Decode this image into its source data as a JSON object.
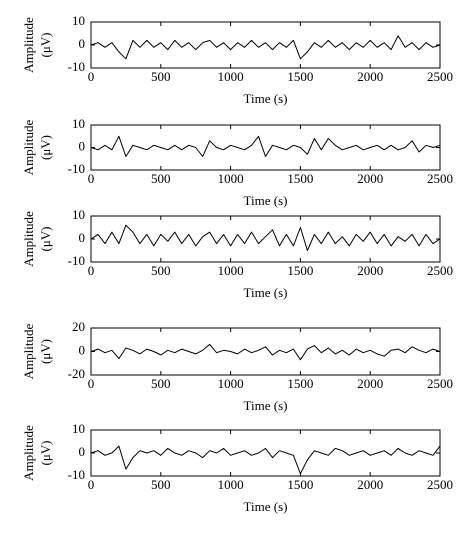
{
  "chart_data": [
    {
      "type": "line",
      "xlabel": "Time (s)",
      "ylabel": "Amplitude",
      "yunit": "(μV)",
      "color": "#000000",
      "x": [
        0,
        50,
        100,
        150,
        200,
        250,
        300,
        350,
        400,
        450,
        500,
        550,
        600,
        650,
        700,
        750,
        800,
        850,
        900,
        950,
        1000,
        1050,
        1100,
        1150,
        1200,
        1250,
        1300,
        1350,
        1400,
        1450,
        1500,
        1550,
        1600,
        1650,
        1700,
        1750,
        1800,
        1850,
        1900,
        1950,
        2000,
        2050,
        2100,
        2150,
        2200,
        2250,
        2300,
        2350,
        2400,
        2450,
        2500
      ],
      "values": [
        0,
        1,
        -1,
        1,
        -3,
        -6,
        2,
        -1,
        2,
        -1,
        1,
        -2,
        2,
        -1,
        1,
        -2,
        1,
        2,
        -1,
        1,
        -2,
        1,
        -1,
        2,
        -1,
        1,
        -2,
        1,
        -1,
        2,
        -6,
        -3,
        1,
        -1,
        2,
        -1,
        1,
        -2,
        1,
        -1,
        2,
        -1,
        1,
        -2,
        4,
        -1,
        1,
        -2,
        1,
        -1,
        0
      ],
      "xlim": [
        0,
        2500
      ],
      "xticks": [
        0,
        500,
        1000,
        1500,
        2000,
        2500
      ],
      "ylim": [
        -10,
        10
      ],
      "yticks": [
        -10,
        0,
        10
      ]
    },
    {
      "type": "line",
      "xlabel": "Time (s)",
      "ylabel": "Amplitude",
      "yunit": "(μV)",
      "color": "#000000",
      "x": [
        0,
        50,
        100,
        150,
        200,
        250,
        300,
        350,
        400,
        450,
        500,
        550,
        600,
        650,
        700,
        750,
        800,
        850,
        900,
        950,
        1000,
        1050,
        1100,
        1150,
        1200,
        1250,
        1300,
        1350,
        1400,
        1450,
        1500,
        1550,
        1600,
        1650,
        1700,
        1750,
        1800,
        1850,
        1900,
        1950,
        2000,
        2050,
        2100,
        2150,
        2200,
        2250,
        2300,
        2350,
        2400,
        2450,
        2500
      ],
      "values": [
        0,
        -1,
        1,
        -1,
        5,
        -4,
        1,
        0,
        -1,
        1,
        0,
        -1,
        1,
        -1,
        1,
        0,
        -4,
        3,
        0,
        -1,
        1,
        0,
        -1,
        1,
        5,
        -4,
        1,
        0,
        -1,
        1,
        0,
        -3,
        4,
        -1,
        4,
        1,
        -1,
        0,
        1,
        -1,
        0,
        1,
        -1,
        1,
        -1,
        0,
        3,
        -2,
        1,
        0,
        1
      ],
      "xlim": [
        0,
        2500
      ],
      "xticks": [
        0,
        500,
        1000,
        1500,
        2000,
        2500
      ],
      "ylim": [
        -10,
        10
      ],
      "yticks": [
        -10,
        0,
        10
      ]
    },
    {
      "type": "line",
      "xlabel": "Time (s)",
      "ylabel": "Amplitude",
      "yunit": "(μV)",
      "color": "#000000",
      "x": [
        0,
        50,
        100,
        150,
        200,
        250,
        300,
        350,
        400,
        450,
        500,
        550,
        600,
        650,
        700,
        750,
        800,
        850,
        900,
        950,
        1000,
        1050,
        1100,
        1150,
        1200,
        1250,
        1300,
        1350,
        1400,
        1450,
        1500,
        1550,
        1600,
        1650,
        1700,
        1750,
        1800,
        1850,
        1900,
        1950,
        2000,
        2050,
        2100,
        2150,
        2200,
        2250,
        2300,
        2350,
        2400,
        2450,
        2500
      ],
      "values": [
        0,
        2,
        -2,
        3,
        -2,
        6,
        3,
        -2,
        2,
        -3,
        2,
        -1,
        3,
        -2,
        2,
        -3,
        1,
        3,
        -2,
        2,
        -3,
        2,
        -2,
        3,
        -2,
        1,
        4,
        -3,
        2,
        -3,
        5,
        -5,
        2,
        -2,
        3,
        -2,
        1,
        -3,
        2,
        -1,
        3,
        -2,
        2,
        -3,
        1,
        -1,
        2,
        -3,
        2,
        -2,
        0
      ],
      "xlim": [
        0,
        2500
      ],
      "xticks": [
        0,
        500,
        1000,
        1500,
        2000,
        2500
      ],
      "ylim": [
        -10,
        10
      ],
      "yticks": [
        -10,
        0,
        10
      ]
    },
    {
      "type": "line",
      "xlabel": "Time (s)",
      "ylabel": "Amplitude",
      "yunit": "(μV)",
      "color": "#000000",
      "x": [
        0,
        50,
        100,
        150,
        200,
        250,
        300,
        350,
        400,
        450,
        500,
        550,
        600,
        650,
        700,
        750,
        800,
        850,
        900,
        950,
        1000,
        1050,
        1100,
        1150,
        1200,
        1250,
        1300,
        1350,
        1400,
        1450,
        1500,
        1550,
        1600,
        1650,
        1700,
        1750,
        1800,
        1850,
        1900,
        1950,
        2000,
        2050,
        2100,
        2150,
        2200,
        2250,
        2300,
        2350,
        2400,
        2450,
        2500
      ],
      "values": [
        0,
        2,
        -1,
        1,
        -6,
        3,
        1,
        -2,
        2,
        0,
        -3,
        1,
        -1,
        2,
        0,
        -2,
        1,
        6,
        -1,
        1,
        0,
        -2,
        2,
        -1,
        1,
        4,
        -3,
        1,
        -1,
        2,
        -7,
        2,
        5,
        -1,
        3,
        -2,
        1,
        -3,
        2,
        -1,
        1,
        -2,
        -4,
        1,
        2,
        -1,
        4,
        1,
        -1,
        2,
        0
      ],
      "xlim": [
        0,
        2500
      ],
      "xticks": [
        0,
        500,
        1000,
        1500,
        2000,
        2500
      ],
      "ylim": [
        -20,
        20
      ],
      "yticks": [
        -20,
        0,
        20
      ]
    },
    {
      "type": "line",
      "xlabel": "Time (s)",
      "ylabel": "Amplitude",
      "yunit": "(μV)",
      "color": "#000000",
      "x": [
        0,
        50,
        100,
        150,
        200,
        250,
        300,
        350,
        400,
        450,
        500,
        550,
        600,
        650,
        700,
        750,
        800,
        850,
        900,
        950,
        1000,
        1050,
        1100,
        1150,
        1200,
        1250,
        1300,
        1350,
        1400,
        1450,
        1500,
        1550,
        1600,
        1650,
        1700,
        1750,
        1800,
        1850,
        1900,
        1950,
        2000,
        2050,
        2100,
        2150,
        2200,
        2250,
        2300,
        2350,
        2400,
        2450,
        2500
      ],
      "values": [
        0,
        1,
        -1,
        0,
        3,
        -7,
        -2,
        1,
        0,
        1,
        -1,
        2,
        0,
        -1,
        1,
        0,
        -2,
        1,
        0,
        2,
        -1,
        0,
        1,
        -1,
        0,
        2,
        -2,
        1,
        0,
        -1,
        -9,
        -3,
        1,
        0,
        -1,
        2,
        1,
        -1,
        0,
        1,
        -1,
        0,
        1,
        -1,
        2,
        0,
        -1,
        1,
        0,
        -1,
        3
      ],
      "xlim": [
        0,
        2500
      ],
      "xticks": [
        0,
        500,
        1000,
        1500,
        2000,
        2500
      ],
      "ylim": [
        -10,
        10
      ],
      "yticks": [
        -10,
        0,
        10
      ]
    }
  ]
}
